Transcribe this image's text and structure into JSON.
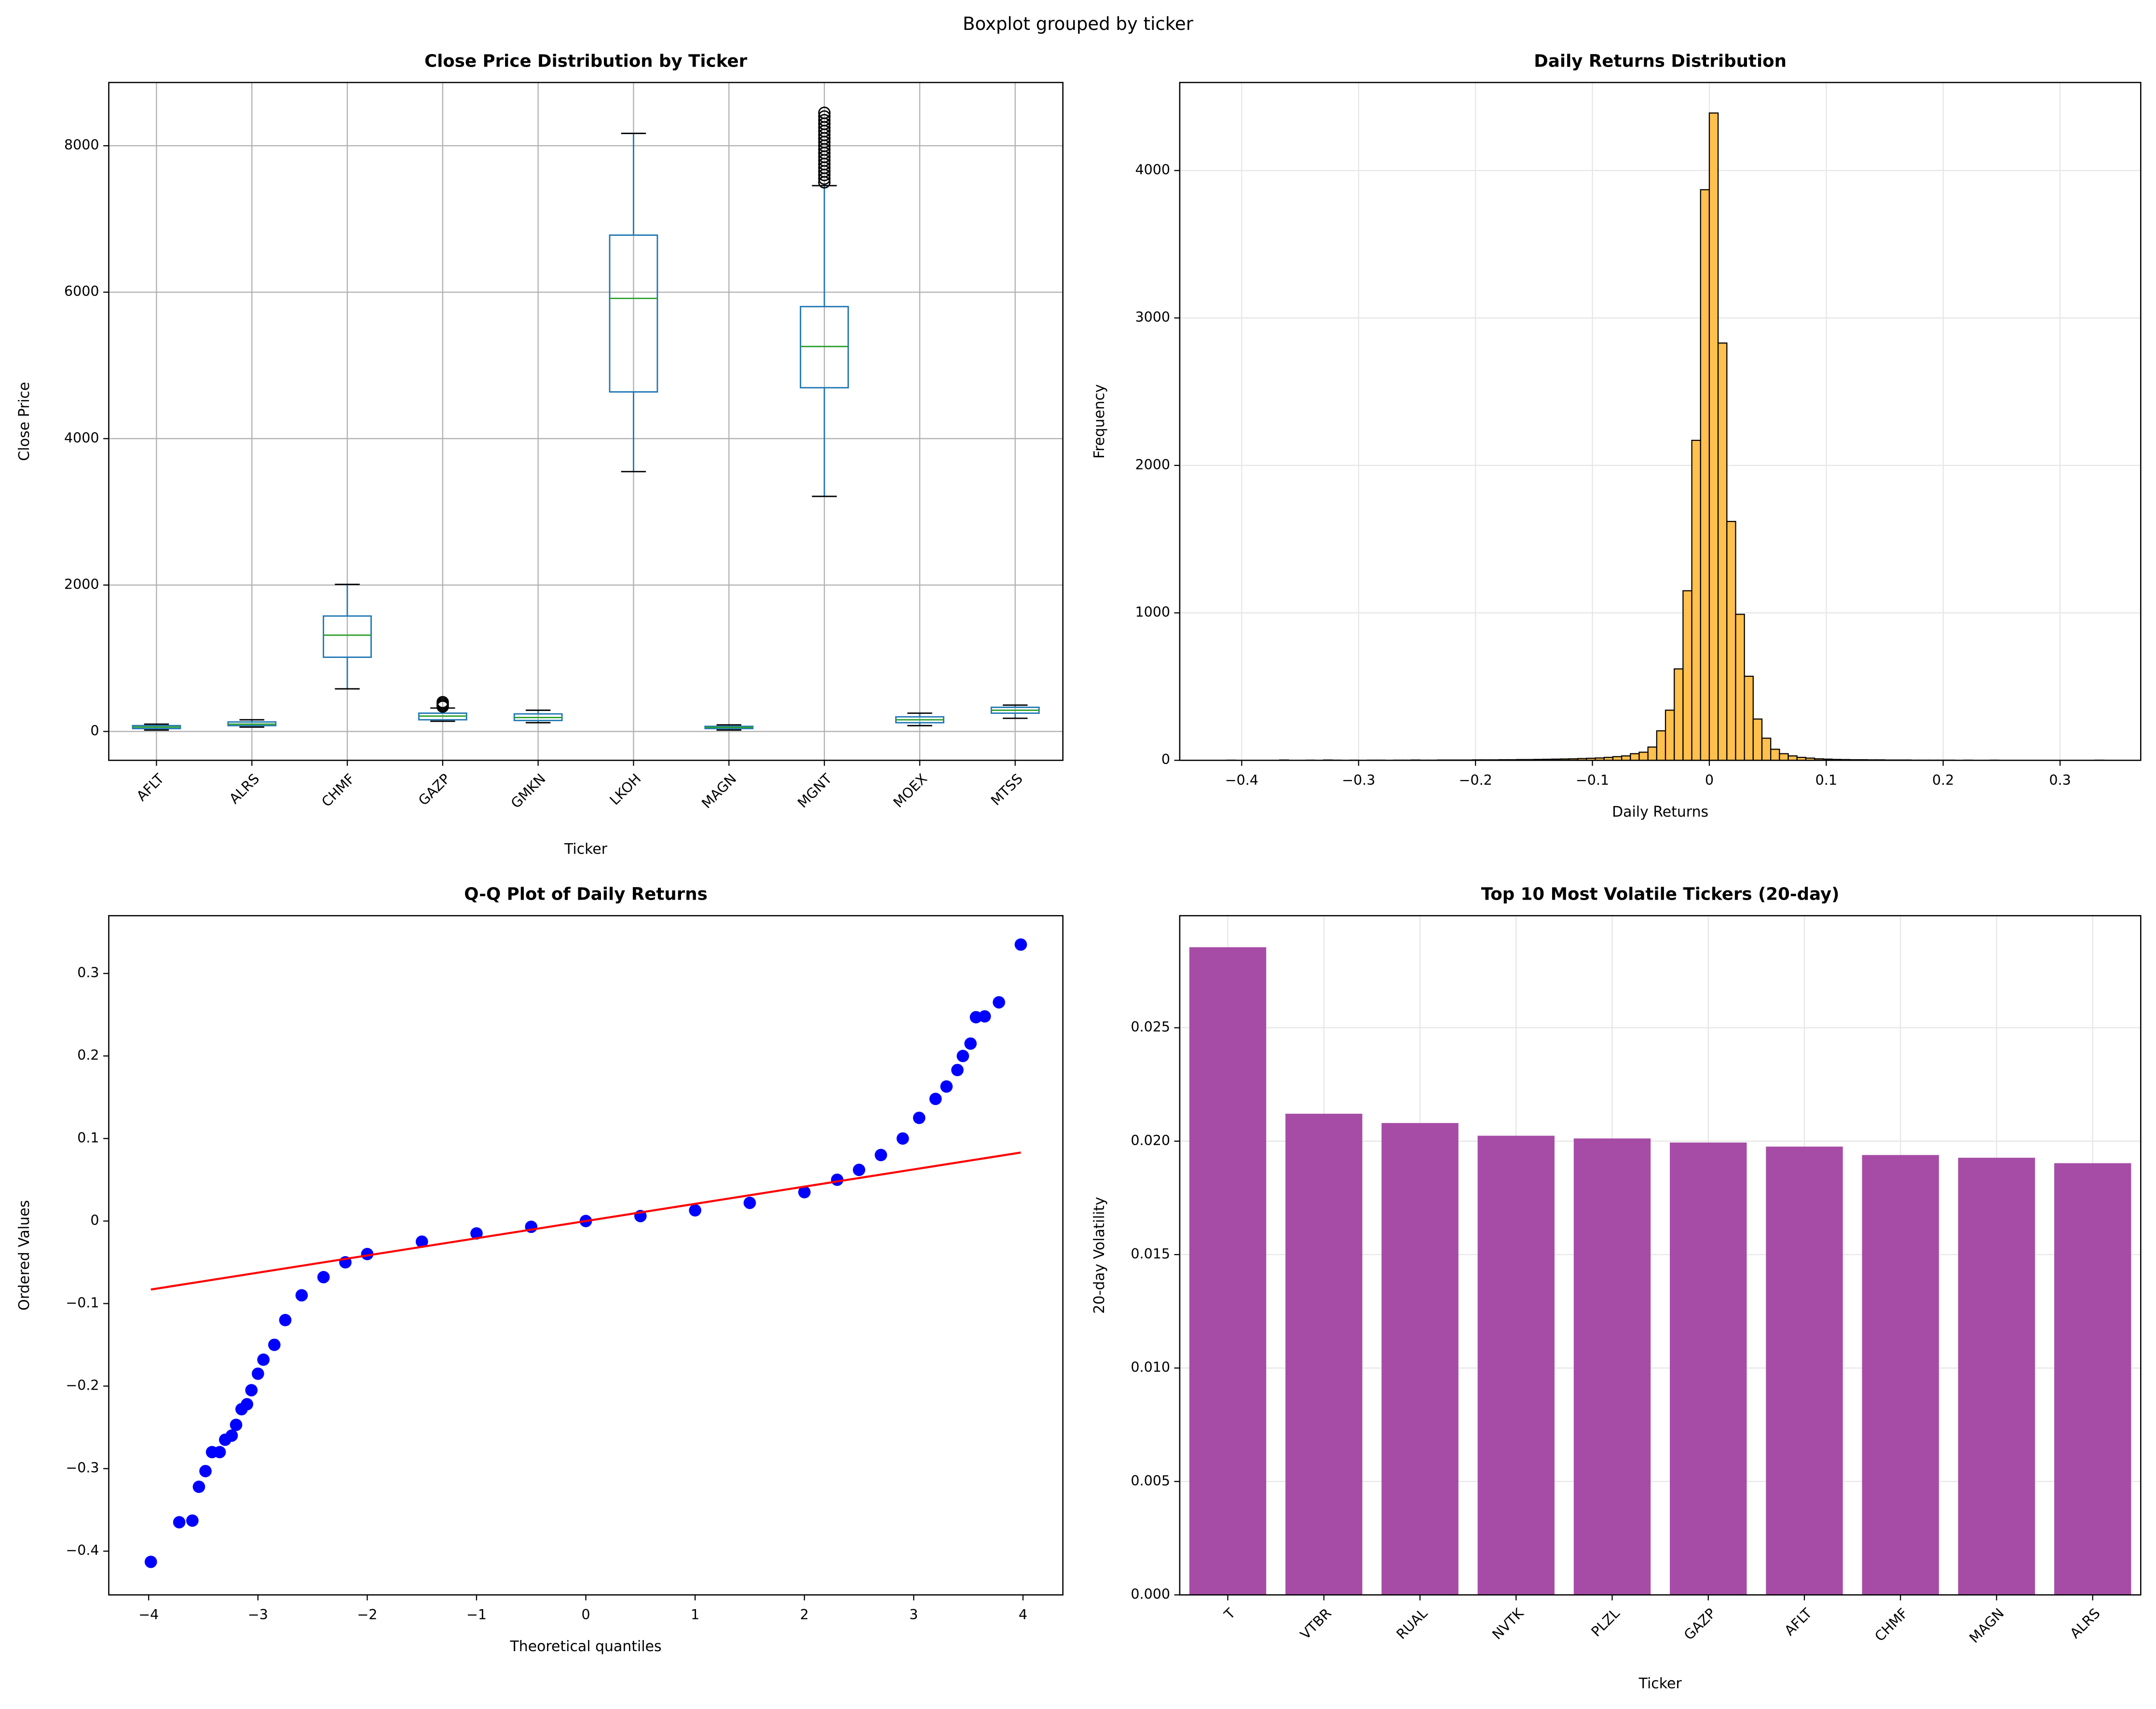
{
  "title": "Boxplot grouped by ticker",
  "chart_data": [
    {
      "type": "box",
      "title": "Close Price Distribution by Ticker",
      "x_label": "Ticker",
      "y_label": "Close Price",
      "categories": [
        "AFLT",
        "ALRS",
        "CHMF",
        "GAZP",
        "GMKN",
        "LKOH",
        "MAGN",
        "MGNT",
        "MOEX",
        "MTSS"
      ],
      "boxes": [
        {
          "min": 20,
          "q1": 40,
          "median": 60,
          "q3": 80,
          "max": 100,
          "outliers": []
        },
        {
          "min": 60,
          "q1": 80,
          "median": 100,
          "q3": 130,
          "max": 160,
          "outliers": []
        },
        {
          "min": 582,
          "q1": 1014,
          "median": 1315,
          "q3": 1577,
          "max": 2009,
          "outliers": []
        },
        {
          "min": 140,
          "q1": 160,
          "median": 210,
          "q3": 250,
          "max": 320,
          "outliers": [
            340,
            360,
            380,
            400
          ]
        },
        {
          "min": 120,
          "q1": 150,
          "median": 190,
          "q3": 240,
          "max": 290,
          "outliers": []
        },
        {
          "min": 3549,
          "q1": 4638,
          "median": 5915,
          "q3": 6779,
          "max": 8169,
          "outliers": []
        },
        {
          "min": 20,
          "q1": 40,
          "median": 55,
          "q3": 70,
          "max": 90,
          "outliers": []
        },
        {
          "min": 3211,
          "q1": 4695,
          "median": 5258,
          "q3": 5803,
          "max": 7455,
          "outliers": [
            7500,
            7550,
            7600,
            7650,
            7700,
            7750,
            7800,
            7850,
            7900,
            7950,
            8000,
            8050,
            8100,
            8150,
            8200,
            8250,
            8300,
            8350,
            8400,
            8450
          ]
        },
        {
          "min": 80,
          "q1": 120,
          "median": 160,
          "q3": 200,
          "max": 250,
          "outliers": []
        },
        {
          "min": 180,
          "q1": 250,
          "median": 290,
          "q3": 330,
          "max": 360,
          "outliers": []
        }
      ],
      "color": "#1f77b4",
      "median_color": "#2ca02c",
      "ylim": [
        -394,
        8864
      ],
      "yticks": [
        0,
        2000,
        4000,
        6000,
        8000
      ],
      "grid": true,
      "grid_color": "#b0b0b0"
    },
    {
      "type": "histogram",
      "title": "Daily Returns Distribution",
      "x_label": "Daily Returns",
      "y_label": "Frequency",
      "bins": [
        -0.4125,
        -0.405,
        -0.3975,
        -0.39,
        -0.3825,
        -0.375,
        -0.3675,
        -0.36,
        -0.3525,
        -0.345,
        -0.3375,
        -0.33,
        -0.3225,
        -0.315,
        -0.3075,
        -0.3,
        -0.2925,
        -0.285,
        -0.2775,
        -0.27,
        -0.2625,
        -0.255,
        -0.2475,
        -0.24,
        -0.2325,
        -0.225,
        -0.2175,
        -0.21,
        -0.2025,
        -0.195,
        -0.1875,
        -0.18,
        -0.1725,
        -0.165,
        -0.1575,
        -0.15,
        -0.1425,
        -0.135,
        -0.1275,
        -0.12,
        -0.1125,
        -0.105,
        -0.0975,
        -0.09,
        -0.0825,
        -0.075,
        -0.0675,
        -0.06,
        -0.0525,
        -0.045,
        -0.0375,
        -0.03,
        -0.0225,
        -0.015,
        -0.0075,
        0,
        0.0075,
        0.015,
        0.0225,
        0.03,
        0.0375,
        0.045,
        0.0525,
        0.06,
        0.0675,
        0.075,
        0.0825,
        0.09,
        0.0975,
        0.105,
        0.1125,
        0.12,
        0.1275,
        0.135,
        0.1425,
        0.15,
        0.1575,
        0.165,
        0.1725,
        0.18,
        0.1875,
        0.195,
        0.2025,
        0.21,
        0.2175,
        0.225,
        0.2325,
        0.24,
        0.2475,
        0.255,
        0.2625,
        0.27,
        0.2775,
        0.285,
        0.2925,
        0.3,
        0.3075,
        0.315,
        0.3225,
        0.33,
        0.3375
      ],
      "values": [
        1,
        0,
        0,
        0,
        0,
        0,
        2,
        0,
        0,
        1,
        0,
        2,
        1,
        0,
        1,
        0,
        1,
        1,
        0,
        1,
        1,
        2,
        1,
        1,
        2,
        2,
        2,
        2,
        3,
        3,
        3,
        4,
        4,
        5,
        5,
        6,
        7,
        8,
        9,
        10,
        12,
        14,
        16,
        20,
        25,
        30,
        45,
        55,
        90,
        200,
        340,
        620,
        1150,
        2170,
        3870,
        4390,
        2830,
        1620,
        990,
        570,
        280,
        150,
        75,
        45,
        30,
        20,
        15,
        10,
        8,
        6,
        5,
        4,
        4,
        3,
        3,
        2,
        2,
        2,
        1,
        1,
        1,
        1,
        1,
        0,
        1,
        0,
        0,
        1,
        0,
        0,
        0,
        0,
        0,
        0,
        0,
        0,
        0,
        0,
        0,
        1
      ],
      "color": "#ffc04d",
      "edge_color": "#000000",
      "xlim": [
        -0.453,
        0.369
      ],
      "xticks": [
        {
          "value": -0.4,
          "label": "−0.4"
        },
        {
          "value": -0.3,
          "label": "−0.3"
        },
        {
          "value": -0.2,
          "label": "−0.2"
        },
        {
          "value": -0.1,
          "label": "−0.1"
        },
        0.0,
        0.1,
        0.2,
        0.3
      ],
      "ylim": [
        0,
        4597
      ],
      "yticks": [
        0,
        1000,
        2000,
        3000,
        4000
      ],
      "grid": true,
      "grid_color": "#e6e6e6"
    },
    {
      "type": "scatter",
      "title": "Q-Q Plot of Daily Returns",
      "x_label": "Theoretical quantiles",
      "y_label": "Ordered Values",
      "series": [
        {
          "mode": "markers",
          "color": "#0000ff",
          "x": [
            -3.98,
            -3.72,
            -3.6,
            -3.54,
            -3.48,
            -3.42,
            -3.35,
            -3.3,
            -3.24,
            -3.2,
            -3.15,
            -3.1,
            -3.06,
            -3.0,
            -2.95,
            -2.85,
            -2.75,
            -2.6,
            -2.4,
            -2.2,
            -2.0,
            -1.5,
            -1.0,
            -0.5,
            0,
            0.5,
            1.0,
            1.5,
            2.0,
            2.3,
            2.5,
            2.7,
            2.9,
            3.05,
            3.2,
            3.3,
            3.4,
            3.45,
            3.52,
            3.57,
            3.65,
            3.78,
            3.98
          ],
          "values": [
            -0.413,
            -0.365,
            -0.363,
            -0.322,
            -0.303,
            -0.28,
            -0.28,
            -0.265,
            -0.26,
            -0.247,
            -0.228,
            -0.222,
            -0.205,
            -0.185,
            -0.168,
            -0.15,
            -0.12,
            -0.09,
            -0.068,
            -0.05,
            -0.04,
            -0.025,
            -0.015,
            -0.007,
            0.0,
            0.006,
            0.013,
            0.022,
            0.035,
            0.05,
            0.062,
            0.08,
            0.1,
            0.125,
            0.148,
            0.163,
            0.183,
            0.2,
            0.215,
            0.247,
            0.248,
            0.265,
            0.335
          ]
        },
        {
          "mode": "line",
          "color": "#ff0000",
          "x": [
            -3.98,
            3.98
          ],
          "values": [
            -0.083,
            0.083
          ]
        }
      ],
      "xlim": [
        -4.365,
        4.365
      ],
      "xticks": [
        {
          "value": -4,
          "label": "−4"
        },
        {
          "value": -3,
          "label": "−3"
        },
        {
          "value": -2,
          "label": "−2"
        },
        {
          "value": -1,
          "label": "−1"
        },
        0,
        1,
        2,
        3,
        4
      ],
      "ylim": [
        -0.453,
        0.37
      ],
      "yticks": [
        {
          "value": -0.4,
          "label": "−0.4"
        },
        {
          "value": -0.3,
          "label": "−0.3"
        },
        {
          "value": -0.2,
          "label": "−0.2"
        },
        {
          "value": -0.1,
          "label": "−0.1"
        },
        0.0,
        0.1,
        0.2,
        0.3
      ],
      "grid": false
    },
    {
      "type": "bar",
      "title": "Top 10 Most Volatile Tickers (20-day)",
      "x_label": "Ticker",
      "y_label": "20-day Volatility",
      "categories": [
        "T",
        "VTBR",
        "RUAL",
        "NVTK",
        "PLZL",
        "GAZP",
        "AFLT",
        "CHMF",
        "MAGN",
        "ALRS"
      ],
      "values": [
        0.02855,
        0.02121,
        0.0208,
        0.02024,
        0.02012,
        0.01994,
        0.01976,
        0.01939,
        0.01927,
        0.01903
      ],
      "color": "#a64ca6",
      "ylim": [
        0,
        0.02994
      ],
      "yticks": [
        {
          "value": 0,
          "label": "0.000"
        },
        {
          "value": 0.005,
          "label": "0.005"
        },
        {
          "value": 0.01,
          "label": "0.010"
        },
        {
          "value": 0.015,
          "label": "0.015"
        },
        {
          "value": 0.02,
          "label": "0.020"
        },
        {
          "value": 0.025,
          "label": "0.025"
        }
      ],
      "grid": true,
      "grid_color": "#e6e6e6"
    }
  ]
}
